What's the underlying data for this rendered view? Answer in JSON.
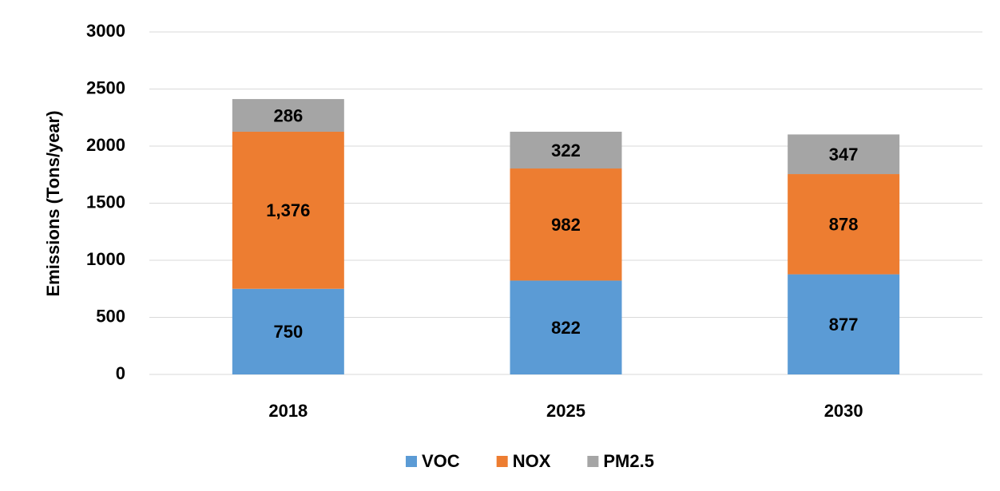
{
  "chart_data": {
    "type": "stacked_bar",
    "y_label": "Emissions (Tons/year)",
    "categories": [
      "2018",
      "2025",
      "2030"
    ],
    "series": [
      {
        "name": "VOC",
        "color": "#5b9bd5",
        "values": [
          750,
          822,
          877
        ]
      },
      {
        "name": "NOX",
        "color": "#ed7d31",
        "values": [
          1376,
          982,
          878
        ],
        "value_labels": [
          "1,376",
          "982",
          "878"
        ]
      },
      {
        "name": "PM2.5",
        "color": "#a5a5a5",
        "values": [
          286,
          322,
          347
        ]
      }
    ],
    "ylim": [
      0,
      3000
    ],
    "yticks": [
      0,
      500,
      1000,
      1500,
      2000,
      2500,
      3000
    ],
    "grid": true,
    "legend": "bottom"
  }
}
